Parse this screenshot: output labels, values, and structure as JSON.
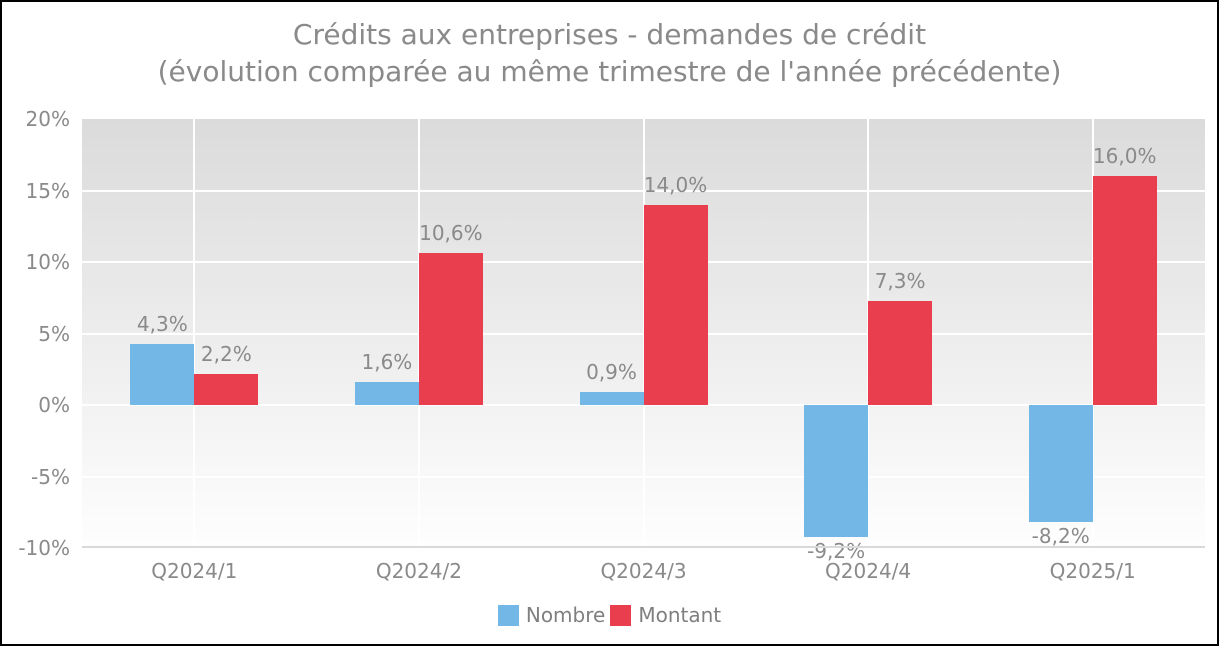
{
  "title": {
    "line1": "Crédits aux entreprises - demandes de crédit",
    "line2": "(évolution comparée au même trimestre de l'année précédente)"
  },
  "chart_data": {
    "type": "bar",
    "title": "Crédits aux entreprises - demandes de crédit (évolution comparée au même trimestre de l'année précédente)",
    "categories": [
      "Q2024/1",
      "Q2024/2",
      "Q2024/3",
      "Q2024/4",
      "Q2025/1"
    ],
    "series": [
      {
        "name": "Nombre",
        "color": "#72B7E5",
        "values": [
          4.3,
          1.6,
          0.9,
          -9.2,
          -8.2
        ],
        "labels": [
          "4,3%",
          "1,6%",
          "0,9%",
          "-9,2%",
          "-8,2%"
        ]
      },
      {
        "name": "Montant",
        "color": "#E83E4D",
        "values": [
          2.2,
          10.6,
          14.0,
          7.3,
          16.0
        ],
        "labels": [
          "2,2%",
          "10,6%",
          "14,0%",
          "7,3%",
          "16,0%"
        ]
      }
    ],
    "ylim": [
      -10,
      20
    ],
    "y_tick_step": 5,
    "y_tick_labels": [
      "20%",
      "15%",
      "10%",
      "5%",
      "0%",
      "-5%",
      "-10%"
    ],
    "grid": true,
    "legend_position": "bottom",
    "styles": {
      "plot_bg_top": "#DBDBDB",
      "plot_bg_bottom": "#FEFEFE",
      "gridline_color": "#FFFFFF",
      "axis_line_color": "#D9D9D9",
      "text_color": "#8A8A8A",
      "legend_text_color": "#7F7F7F"
    }
  }
}
